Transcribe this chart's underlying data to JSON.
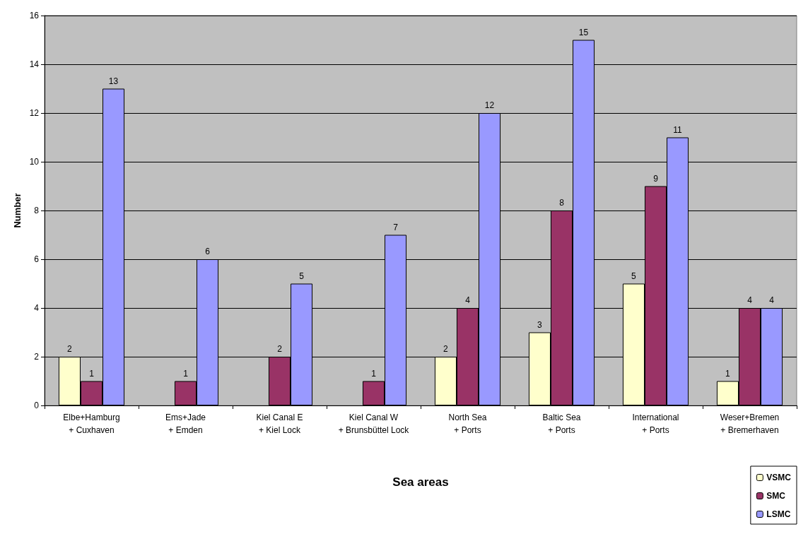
{
  "chart_data": {
    "type": "bar",
    "xlabel": "Sea areas",
    "ylabel": "Number",
    "categories": [
      "Elbe+Hamburg\n+ Cuxhaven",
      "Ems+Jade\n+ Emden",
      "Kiel Canal E\n+ Kiel Lock",
      "Kiel Canal W\n+ Brunsbüttel Lock",
      "North Sea\n+ Ports",
      "Baltic Sea\n+ Ports",
      "International\n+ Ports",
      "Weser+Bremen\n+ Bremerhaven"
    ],
    "series": [
      {
        "name": "VSMC",
        "color": "#ffffcc",
        "values": [
          2,
          null,
          null,
          null,
          2,
          3,
          5,
          1
        ]
      },
      {
        "name": "SMC",
        "color": "#993366",
        "values": [
          1,
          1,
          2,
          1,
          4,
          8,
          9,
          4
        ]
      },
      {
        "name": "LSMC",
        "color": "#9999ff",
        "values": [
          13,
          6,
          5,
          7,
          12,
          15,
          11,
          4
        ]
      }
    ],
    "ylim": [
      0,
      16
    ],
    "yticks": [
      0,
      2,
      4,
      6,
      8,
      10,
      12,
      14,
      16
    ],
    "grid": "y",
    "legend": "bottom right",
    "data_labels": true
  }
}
